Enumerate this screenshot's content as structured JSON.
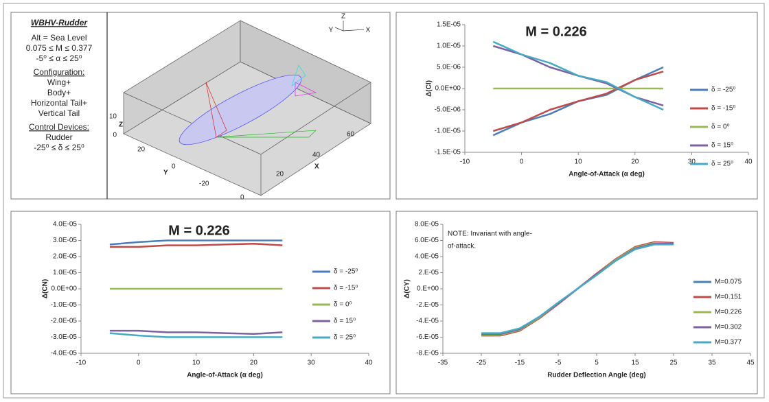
{
  "info_panel": {
    "title": "WBHV-Rudder",
    "lines": [
      "Alt = Sea Level",
      "0.075 ≤ M ≤ 0.377",
      "-5⁰  ≤ α ≤ 25⁰"
    ],
    "configuration_heading": "Configuration:",
    "configuration": [
      "Wing+",
      "Body+",
      "Horizontal Tail+",
      "Vertical Tail"
    ],
    "controls_heading": "Control Devices:",
    "controls": [
      "Rudder",
      "-25⁰ ≤ δ ≤ 25⁰"
    ]
  },
  "model_view": {
    "triad": [
      "Z",
      "Y",
      "X"
    ],
    "z_label": "Z",
    "y_label": "Y",
    "x_label": "X",
    "z_ticks": [
      "10",
      "0"
    ],
    "y_ticks": [
      "20",
      "0",
      "-20"
    ],
    "x_ticks": [
      "0",
      "20",
      "40",
      "60"
    ]
  },
  "chart_data": [
    {
      "type": "line",
      "annotation": "M = 0.226",
      "x_label": "Angle-of-Attack (α deg)",
      "y_label": "Δ(Cl)",
      "x": [
        -5,
        0,
        5,
        10,
        15,
        20,
        25
      ],
      "xlim": [
        -10,
        40
      ],
      "xticks": [
        -10,
        0,
        10,
        20,
        30,
        40
      ],
      "ylim": [
        -1.5e-05,
        1.5e-05
      ],
      "yticks": [
        {
          "value": 1.5e-05,
          "label": "1.5E-05"
        },
        {
          "value": 1e-05,
          "label": "1.0E-05"
        },
        {
          "value": 5e-06,
          "label": "5.0E-06"
        },
        {
          "value": 0,
          "label": "0.0E+00"
        },
        {
          "value": -5e-06,
          "label": "-5.0E-06"
        },
        {
          "value": -1e-05,
          "label": "-1.0E-05"
        },
        {
          "value": -1.5e-05,
          "label": "-1.5E-05"
        }
      ],
      "legend": "right",
      "series": [
        {
          "name": "δ = -25⁰",
          "color": "#4a7ebb",
          "values": [
            -1.1e-05,
            -8e-06,
            -6e-06,
            -3e-06,
            -1.5e-06,
            2e-06,
            5e-06
          ]
        },
        {
          "name": "δ = -15⁰",
          "color": "#be4b48",
          "values": [
            -1e-05,
            -8e-06,
            -5e-06,
            -3e-06,
            -1.2e-06,
            2e-06,
            4e-06
          ]
        },
        {
          "name": "δ = 0⁰",
          "color": "#98b954",
          "values": [
            0,
            0,
            0,
            0,
            0,
            0,
            0
          ]
        },
        {
          "name": "δ = 15⁰",
          "color": "#7d60a0",
          "values": [
            1e-05,
            8e-06,
            5e-06,
            3e-06,
            1.2e-06,
            -2e-06,
            -4e-06
          ]
        },
        {
          "name": "δ = 25⁰",
          "color": "#46aac5",
          "values": [
            1.1e-05,
            8e-06,
            6e-06,
            3e-06,
            1.5e-06,
            -2e-06,
            -5e-06
          ]
        }
      ]
    },
    {
      "type": "line",
      "annotation": "M = 0.226",
      "x_label": "Angle-of-Attack (α deg)",
      "y_label": "Δ(CN)",
      "x": [
        -5,
        0,
        5,
        10,
        15,
        20,
        25
      ],
      "xlim": [
        -10,
        40
      ],
      "xticks": [
        -10,
        0,
        10,
        20,
        30,
        40
      ],
      "ylim": [
        -4e-05,
        4e-05
      ],
      "yticks": [
        {
          "value": 4e-05,
          "label": "4.0E-05"
        },
        {
          "value": 3e-05,
          "label": "3.0E-05"
        },
        {
          "value": 2e-05,
          "label": "2.0E-05"
        },
        {
          "value": 1e-05,
          "label": "1.0E-05"
        },
        {
          "value": 0,
          "label": "0.0E+00"
        },
        {
          "value": -1e-05,
          "label": "-1.0E-05"
        },
        {
          "value": -2e-05,
          "label": "-2.0E-05"
        },
        {
          "value": -3e-05,
          "label": "-3.0E-05"
        },
        {
          "value": -4e-05,
          "label": "-4.0E-05"
        }
      ],
      "legend": "right",
      "series": [
        {
          "name": "δ = -25⁰",
          "color": "#4a7ebb",
          "values": [
            2.75e-05,
            2.9e-05,
            3e-05,
            3e-05,
            3e-05,
            3e-05,
            3e-05
          ]
        },
        {
          "name": "δ = -15⁰",
          "color": "#be4b48",
          "values": [
            2.6e-05,
            2.6e-05,
            2.7e-05,
            2.7e-05,
            2.75e-05,
            2.8e-05,
            2.7e-05
          ]
        },
        {
          "name": "δ = 0⁰",
          "color": "#98b954",
          "values": [
            0,
            0,
            0,
            0,
            0,
            0,
            0
          ]
        },
        {
          "name": "δ = 15⁰",
          "color": "#7d60a0",
          "values": [
            -2.6e-05,
            -2.6e-05,
            -2.7e-05,
            -2.7e-05,
            -2.75e-05,
            -2.8e-05,
            -2.7e-05
          ]
        },
        {
          "name": "δ = 25⁰",
          "color": "#46aac5",
          "values": [
            -2.75e-05,
            -2.9e-05,
            -3e-05,
            -3e-05,
            -3e-05,
            -3e-05,
            -3e-05
          ]
        }
      ]
    },
    {
      "type": "line",
      "note": [
        "NOTE: Invariant with angle-",
        "of-attack."
      ],
      "x_label": "Rudder Deflection Angle (deg)",
      "y_label": "Δ(CY)",
      "x": [
        -25,
        -20,
        -15,
        -10,
        -5,
        0,
        5,
        10,
        15,
        20,
        25
      ],
      "xlim": [
        -35,
        45
      ],
      "xticks": [
        -35,
        -25,
        -15,
        -5,
        5,
        15,
        25,
        35,
        45
      ],
      "ylim": [
        -8e-05,
        8e-05
      ],
      "yticks": [
        {
          "value": 8e-05,
          "label": "8.0E-05"
        },
        {
          "value": 6e-05,
          "label": "6.0E-05"
        },
        {
          "value": 4e-05,
          "label": "4.0E-05"
        },
        {
          "value": 2e-05,
          "label": "2.E-05"
        },
        {
          "value": 0,
          "label": "0.E+00"
        },
        {
          "value": -2e-05,
          "label": "-2.E-05"
        },
        {
          "value": -4e-05,
          "label": "-4.E-05"
        },
        {
          "value": -6e-05,
          "label": "-6.E-05"
        },
        {
          "value": -8e-05,
          "label": "-8.E-05"
        }
      ],
      "legend": "right",
      "series": [
        {
          "name": "M=0.075",
          "color": "#4a7ebb",
          "values": [
            -5.6e-05,
            -5.6e-05,
            -5e-05,
            -3.6e-05,
            -1.8e-05,
            0,
            1.8e-05,
            3.6e-05,
            5e-05,
            5.6e-05,
            5.6e-05
          ]
        },
        {
          "name": "M=0.151",
          "color": "#be4b48",
          "values": [
            -5.8e-05,
            -5.8e-05,
            -5.2e-05,
            -3.7e-05,
            -1.9e-05,
            0,
            1.9e-05,
            3.7e-05,
            5.2e-05,
            5.8e-05,
            5.7e-05
          ]
        },
        {
          "name": "M=0.226",
          "color": "#98b954",
          "values": [
            -5.7e-05,
            -5.7e-05,
            -5.1e-05,
            -3.6e-05,
            -1.8e-05,
            0,
            1.8e-05,
            3.6e-05,
            5.1e-05,
            5.7e-05,
            5.6e-05
          ]
        },
        {
          "name": "M=0.302",
          "color": "#7d60a0",
          "values": [
            -5.6e-05,
            -5.6e-05,
            -5e-05,
            -3.5e-05,
            -1.8e-05,
            0,
            1.8e-05,
            3.5e-05,
            5e-05,
            5.6e-05,
            5.6e-05
          ]
        },
        {
          "name": "M=0.377",
          "color": "#46aac5",
          "values": [
            -5.5e-05,
            -5.5e-05,
            -4.9e-05,
            -3.5e-05,
            -1.7e-05,
            0,
            1.7e-05,
            3.5e-05,
            4.9e-05,
            5.5e-05,
            5.5e-05
          ]
        }
      ]
    }
  ]
}
